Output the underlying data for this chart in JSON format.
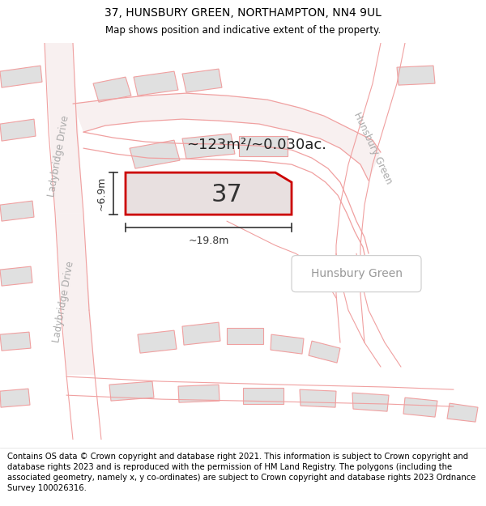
{
  "title_line1": "37, HUNSBURY GREEN, NORTHAMPTON, NN4 9UL",
  "title_line2": "Map shows position and indicative extent of the property.",
  "footer_text": "Contains OS data © Crown copyright and database right 2021. This information is subject to Crown copyright and database rights 2023 and is reproduced with the permission of HM Land Registry. The polygons (including the associated geometry, namely x, y co-ordinates) are subject to Crown copyright and database rights 2023 Ordnance Survey 100026316.",
  "map_bg_color": "#ffffff",
  "building_fill": "#e0e0e0",
  "building_edge": "#f0a0a0",
  "road_line_color": "#f0a0a0",
  "road_fill_color": "#f8f0f0",
  "plot_fill_color": "#e8e0e0",
  "plot_border_color": "#cc0000",
  "dim_line_color": "#333333",
  "street_label_color": "#aaaaaa",
  "area_label_color": "#aaaaaa",
  "label_37": "37",
  "area_label": "~123m²/~0.030ac.",
  "dim_width": "~19.8m",
  "dim_height": "~6.9m",
  "street_label_left": "Ladybridge Drive",
  "street_label_right": "Hunsbury Green",
  "area_label_text": "Hunsbury Green",
  "title_fontsize": 10,
  "subtitle_fontsize": 8.5,
  "footer_fontsize": 7.2
}
